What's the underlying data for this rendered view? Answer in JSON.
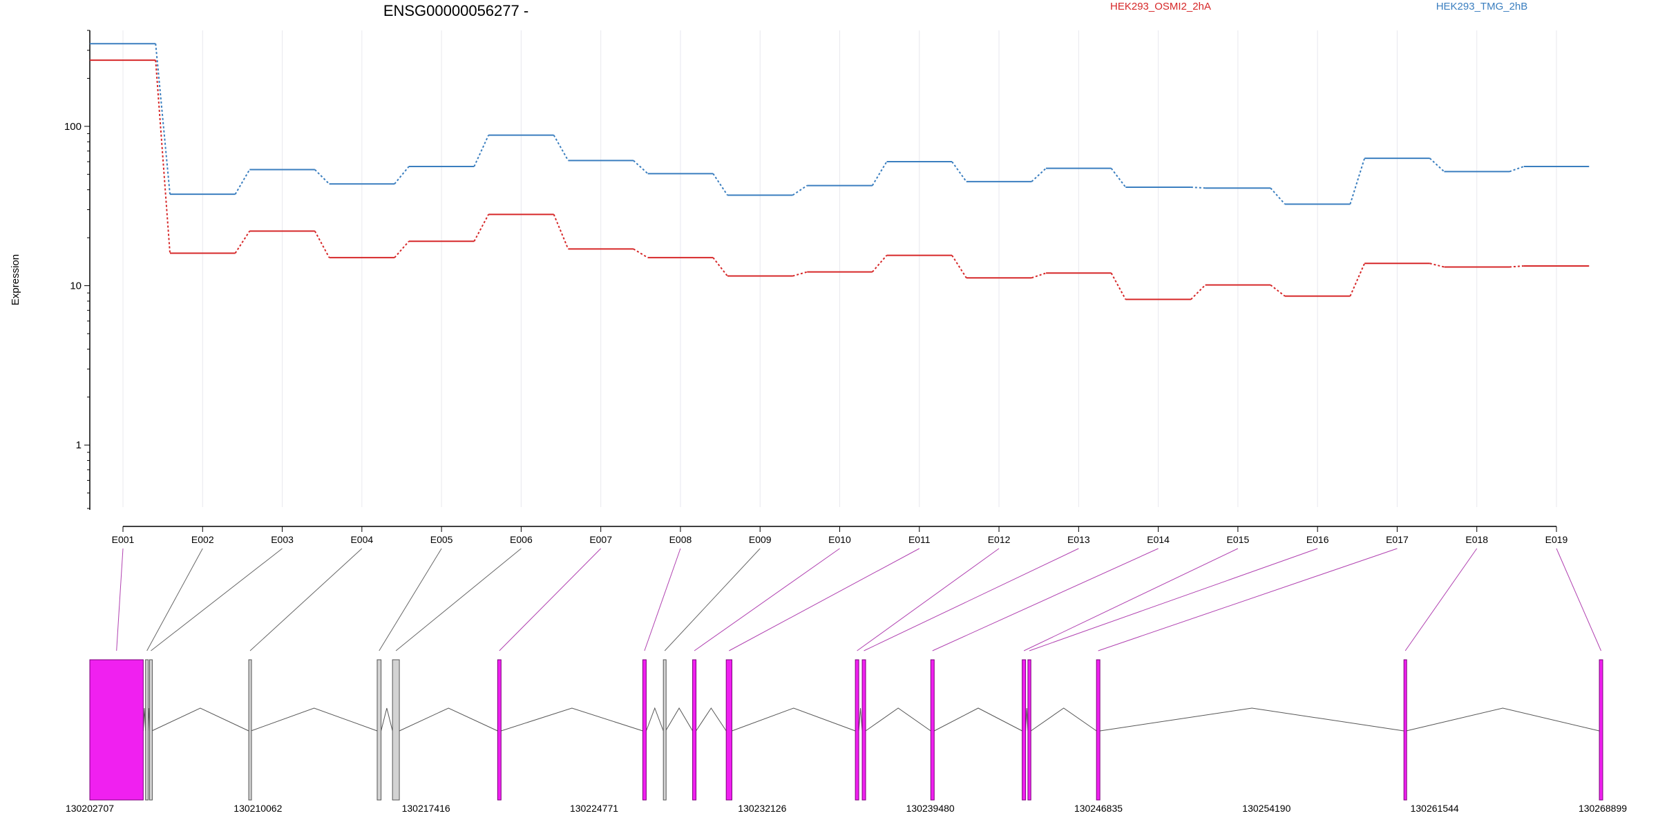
{
  "chart_data": {
    "type": "line",
    "title": "ENSG00000056277 -",
    "ylabel": "Expression",
    "xlabel": "",
    "yscale": "log",
    "ylim": [
      0.4,
      400
    ],
    "yticks": [
      1,
      10,
      100
    ],
    "grid": "vertical",
    "legend_position": "top",
    "categories": [
      "E001",
      "E002",
      "E003",
      "E004",
      "E005",
      "E006",
      "E007",
      "E008",
      "E009",
      "E010",
      "E011",
      "E012",
      "E013",
      "E014",
      "E015",
      "E016",
      "E017",
      "E018",
      "E019"
    ],
    "series": [
      {
        "name": "HEK293_OSMI2_2hA",
        "color": "#d62728",
        "values": [
          260,
          16,
          22,
          15,
          19,
          28,
          17,
          15,
          11.5,
          12.2,
          15.5,
          11.2,
          12,
          8.2,
          10.1,
          8.6,
          13.8,
          13.1,
          13.3
        ]
      },
      {
        "name": "HEK293_TMG_2hB",
        "color": "#3a7ebf",
        "values": [
          330,
          37.5,
          53.5,
          43.5,
          56,
          88,
          61,
          50.5,
          37,
          42.5,
          60,
          45,
          54.5,
          41.5,
          41,
          32.5,
          63,
          52,
          56
        ]
      }
    ],
    "gene_model": {
      "coordinates": [
        "130202707",
        "130210062",
        "130217416",
        "130224771",
        "130232126",
        "130239480",
        "130246835",
        "130254190",
        "130261544",
        "130268899"
      ],
      "exon_color": "#f020f0",
      "exons": [
        {
          "start": 130202707,
          "end": 130205045,
          "type": "highlighted",
          "exon": "E001"
        },
        {
          "start": 130205145,
          "end": 130205245,
          "type": "plain",
          "exon": "E002"
        },
        {
          "start": 130205320,
          "end": 130205420,
          "type": "plain",
          "exon": "E003"
        },
        {
          "start": 130209660,
          "end": 130209760,
          "type": "plain",
          "exon": "E004"
        },
        {
          "start": 130215280,
          "end": 130215450,
          "type": "plain",
          "exon": "E005"
        },
        {
          "start": 130215950,
          "end": 130216250,
          "type": "plain",
          "exon": "E006"
        },
        {
          "start": 130220550,
          "end": 130220700,
          "type": "highlighted",
          "exon": "E007"
        },
        {
          "start": 130226900,
          "end": 130227050,
          "type": "highlighted",
          "exon": "E008"
        },
        {
          "start": 130227800,
          "end": 130227900,
          "type": "plain",
          "exon": "E009"
        },
        {
          "start": 130229080,
          "end": 130229230,
          "type": "highlighted",
          "exon": "E010"
        },
        {
          "start": 130230550,
          "end": 130230800,
          "type": "highlighted",
          "exon": "E011"
        },
        {
          "start": 130236200,
          "end": 130236350,
          "type": "highlighted",
          "exon": "E012"
        },
        {
          "start": 130236500,
          "end": 130236650,
          "type": "highlighted",
          "exon": "E013"
        },
        {
          "start": 130239500,
          "end": 130239650,
          "type": "highlighted",
          "exon": "E014"
        },
        {
          "start": 130243500,
          "end": 130243650,
          "type": "highlighted",
          "exon": "E015"
        },
        {
          "start": 130243750,
          "end": 130243880,
          "type": "highlighted",
          "exon": "E016"
        },
        {
          "start": 130246750,
          "end": 130246900,
          "type": "highlighted",
          "exon": "E017"
        },
        {
          "start": 130260200,
          "end": 130260300,
          "type": "highlighted",
          "exon": "E018"
        },
        {
          "start": 130268750,
          "end": 130268899,
          "type": "highlighted",
          "exon": "E019"
        }
      ]
    }
  }
}
